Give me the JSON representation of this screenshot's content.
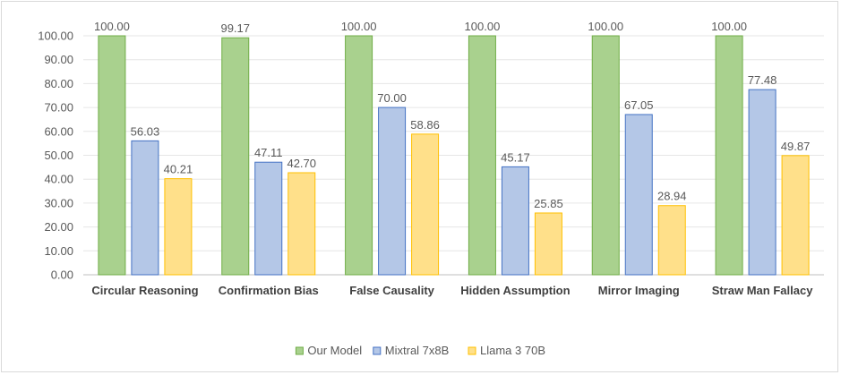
{
  "chart_data": {
    "type": "bar",
    "categories": [
      "Circular Reasoning",
      "Confirmation Bias",
      "False Causality",
      "Hidden Assumption",
      "Mirror Imaging",
      "Straw Man Fallacy"
    ],
    "series": [
      {
        "name": "Our Model",
        "values": [
          100.0,
          99.17,
          100.0,
          100.0,
          100.0,
          100.0
        ],
        "color": "#a9d18e",
        "stroke": "#70ad47"
      },
      {
        "name": "Mixtral 7x8B",
        "values": [
          56.03,
          47.11,
          70.0,
          45.17,
          67.05,
          77.48
        ],
        "color": "#b4c7e7",
        "stroke": "#4472c4"
      },
      {
        "name": "Llama 3 70B",
        "values": [
          40.21,
          42.7,
          58.86,
          25.85,
          28.94,
          49.87
        ],
        "color": "#ffe08a",
        "stroke": "#ffc000"
      }
    ],
    "ylim": [
      0,
      100
    ],
    "ystep": 10,
    "yticks": [
      "0.00",
      "10.00",
      "20.00",
      "30.00",
      "40.00",
      "50.00",
      "60.00",
      "70.00",
      "80.00",
      "90.00",
      "100.00"
    ],
    "data_labels": [
      [
        "100.00",
        "56.03",
        "40.21"
      ],
      [
        "99.17",
        "47.11",
        "42.70"
      ],
      [
        "100.00",
        "70.00",
        "58.86"
      ],
      [
        "100.00",
        "45.17",
        "25.85"
      ],
      [
        "100.00",
        "67.05",
        "28.94"
      ],
      [
        "100.00",
        "77.48",
        "49.87"
      ]
    ],
    "grid": true,
    "legend": "bottom",
    "title": "",
    "xlabel": "",
    "ylabel": ""
  }
}
